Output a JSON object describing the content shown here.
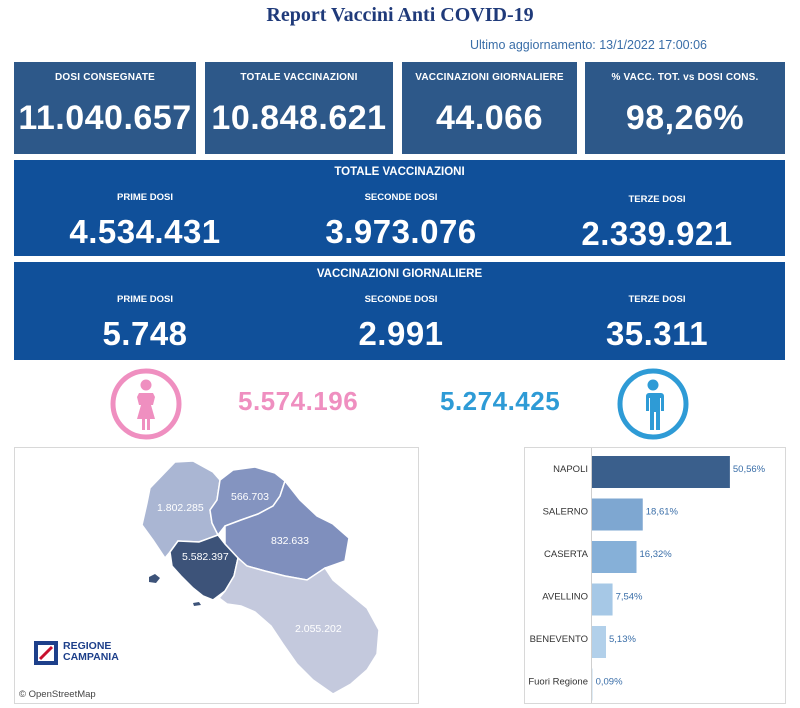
{
  "title": "Report Vaccini Anti COVID-19",
  "updated": "Ultimo aggiornamento: 13/1/2022  17:00:06",
  "kpis": [
    {
      "label": "DOSI  CONSEGNATE",
      "value": "11.040.657"
    },
    {
      "label": "TOTALE VACCINAZIONI",
      "value": "10.848.621"
    },
    {
      "label": "VACCINAZIONI GIORNALIERE",
      "value": "44.066"
    },
    {
      "label": "% VACC. TOT. vs DOSI CONS.",
      "value": "98,26%"
    }
  ],
  "totale": {
    "title": "TOTALE VACCINAZIONI",
    "prime_label": "PRIME DOSI",
    "prime": "4.534.431",
    "seconde_label": "SECONDE DOSI",
    "seconde": "3.973.076",
    "terze_label": "TERZE DOSI",
    "terze": "2.339.921"
  },
  "giornaliere": {
    "title": "VACCINAZIONI GIORNALIERE",
    "prime_label": "PRIME DOSI",
    "prime": "5.748",
    "seconde_label": "SECONDE DOSI",
    "seconde": "2.991",
    "terze_label": "TERZE DOSI",
    "terze": "35.311"
  },
  "gender": {
    "female_value": "5.574.196",
    "male_value": "5.274.425",
    "female_color": "#ef8fc0",
    "male_color": "#2e9bd6"
  },
  "map": {
    "provinces": [
      {
        "name": "Caserta",
        "value": "1.802.285",
        "color": "#aab6d3"
      },
      {
        "name": "Benevento",
        "value": "566.703",
        "color": "#8494c0"
      },
      {
        "name": "Avellino",
        "value": "832.633",
        "color": "#7f8fbd"
      },
      {
        "name": "Napoli",
        "value": "5.582.397",
        "color": "#3d5379"
      },
      {
        "name": "Salerno",
        "value": "2.055.202",
        "color": "#c4c9dd"
      }
    ],
    "attribution": "© OpenStreetMap",
    "logo_line1": "REGIONE",
    "logo_line2": "CAMPANIA"
  },
  "chart_data": {
    "type": "bar",
    "orientation": "horizontal",
    "categories": [
      "NAPOLI",
      "SALERNO",
      "CASERTA",
      "AVELLINO",
      "BENEVENTO",
      "Fuori Regione"
    ],
    "values": [
      50.56,
      18.61,
      16.32,
      7.54,
      5.13,
      0.09
    ],
    "labels": [
      "50,56%",
      "18,61%",
      "16,32%",
      "7,54%",
      "5,13%",
      "0,09%"
    ],
    "colors": [
      "#3a5f8c",
      "#7ea7d1",
      "#86b0d8",
      "#a6c8e6",
      "#b2d0ea",
      "#c9dff1"
    ],
    "xlim": [
      0,
      55
    ]
  }
}
